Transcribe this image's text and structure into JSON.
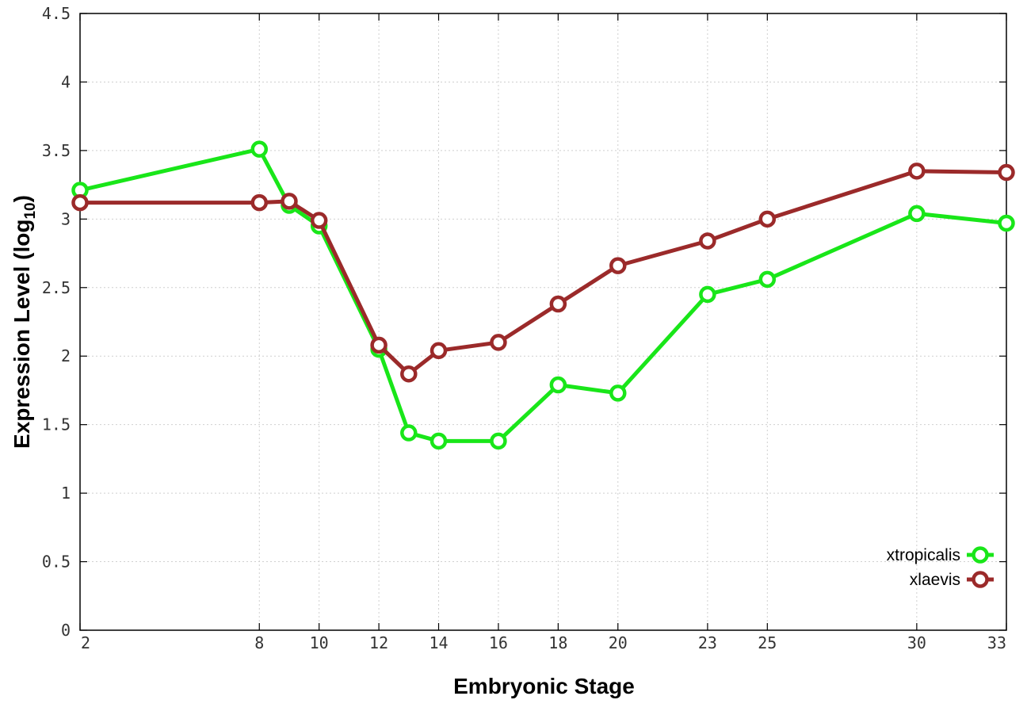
{
  "chart_data": {
    "type": "line",
    "title": "",
    "xlabel": "Embryonic Stage",
    "ylabel_main": "Expression Level (log",
    "ylabel_sub": "10",
    "ylabel_close": ")",
    "x": [
      2,
      8,
      9,
      10,
      12,
      13,
      14,
      16,
      18,
      20,
      23,
      25,
      30,
      33
    ],
    "x_ticks": [
      2,
      8,
      10,
      12,
      14,
      16,
      18,
      20,
      23,
      25,
      30,
      33
    ],
    "x_tick_labels": [
      "2",
      "8",
      "10",
      "12",
      "14",
      "16",
      "18",
      "20",
      "23",
      "25",
      "30",
      "33"
    ],
    "xlim": [
      2,
      33
    ],
    "ylim": [
      0,
      4.5
    ],
    "y_ticks": [
      0,
      0.5,
      1,
      1.5,
      2,
      2.5,
      3,
      3.5,
      4,
      4.5
    ],
    "y_tick_labels": [
      "0",
      "0.5",
      "1",
      "1.5",
      "2",
      "2.5",
      "3",
      "3.5",
      "4",
      "4.5"
    ],
    "grid": true,
    "legend_position": "bottom-right",
    "series": [
      {
        "name": "xtropicalis",
        "color": "#19e619",
        "marker": "open-circle",
        "values": [
          3.21,
          3.51,
          3.1,
          2.95,
          2.05,
          1.44,
          1.38,
          1.38,
          1.79,
          1.73,
          2.45,
          2.56,
          3.04,
          2.97
        ]
      },
      {
        "name": "xlaevis",
        "color": "#9b2a2a",
        "marker": "open-circle",
        "values": [
          3.12,
          3.12,
          3.13,
          2.99,
          2.08,
          1.87,
          2.04,
          2.1,
          2.38,
          2.66,
          2.84,
          3.0,
          3.35,
          3.34
        ]
      }
    ]
  }
}
